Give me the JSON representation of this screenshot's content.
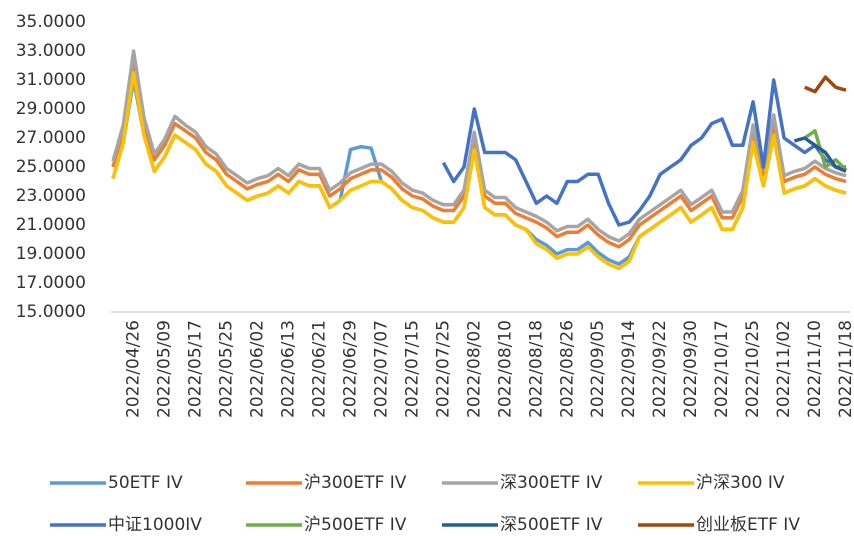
{
  "chart_data": {
    "type": "line",
    "categories": [
      null,
      null,
      "2022/04/26",
      null,
      null,
      "2022/05/09",
      null,
      null,
      "2022/05/17",
      null,
      null,
      "2022/05/25",
      null,
      null,
      "2022/06/02",
      null,
      null,
      "2022/06/13",
      null,
      null,
      "2022/06/21",
      null,
      null,
      "2022/06/29",
      null,
      null,
      "2022/07/07",
      null,
      null,
      "2022/07/15",
      null,
      null,
      "2022/07/25",
      null,
      null,
      "2022/08/02",
      null,
      null,
      "2022/08/10",
      null,
      null,
      "2022/08/18",
      null,
      null,
      "2022/08/26",
      null,
      null,
      "2022/09/05",
      null,
      null,
      "2022/09/14",
      null,
      null,
      "2022/09/22",
      null,
      null,
      "2022/09/30",
      null,
      null,
      "2022/10/17",
      null,
      null,
      "2022/10/25",
      null,
      null,
      "2022/11/02",
      null,
      null,
      "2022/11/10",
      null,
      null,
      "2022/11/18"
    ],
    "ylim": [
      15,
      35
    ],
    "yticks": [
      {
        "value": 15,
        "label": "15.0000"
      },
      {
        "value": 17,
        "label": "17.0000"
      },
      {
        "value": 19,
        "label": "19.0000"
      },
      {
        "value": 21,
        "label": "21.0000"
      },
      {
        "value": 23,
        "label": "23.0000"
      },
      {
        "value": 25,
        "label": "25.0000"
      },
      {
        "value": 27,
        "label": "27.0000"
      },
      {
        "value": 29,
        "label": "29.0000"
      },
      {
        "value": 31,
        "label": "31.0000"
      },
      {
        "value": 33,
        "label": "33.0000"
      },
      {
        "value": 35,
        "label": "35.0000"
      }
    ],
    "grid": false,
    "series": [
      {
        "name": "50ETF IV",
        "color": "#5b9bd5",
        "values": [
          24.2,
          26.7,
          31,
          27.2,
          24.7,
          25.7,
          27.2,
          26.7,
          26.2,
          25.2,
          24.7,
          23.7,
          23.2,
          22.7,
          23,
          23.2,
          23.7,
          23.2,
          24,
          23.7,
          23.7,
          22.2,
          22.7,
          26.2,
          26.4,
          26.3,
          24,
          23.5,
          22.7,
          22.2,
          22,
          21.5,
          21.2,
          21.2,
          22.2,
          26.2,
          22.2,
          21.7,
          21.7,
          21,
          20.7,
          20,
          19.6,
          19,
          19.3,
          19.3,
          19.8,
          19.1,
          18.6,
          18.3,
          18.8,
          20.2,
          20.7,
          21.2,
          21.7,
          22.2,
          21.2,
          21.7,
          22.2,
          20.7,
          20.7,
          22.2,
          26.7,
          23.7,
          27.2,
          23.2,
          23.5,
          23.7,
          24.2,
          23.7,
          23.4,
          23.2
        ]
      },
      {
        "name": "沪300ETF IV",
        "color": "#ed7d31",
        "values": [
          25,
          27.5,
          32,
          28,
          25.5,
          26.5,
          28,
          27.5,
          27,
          26,
          25.5,
          24.5,
          24,
          23.5,
          23.8,
          24,
          24.5,
          24,
          24.8,
          24.5,
          24.5,
          23,
          23.5,
          24.2,
          24.5,
          24.8,
          24.8,
          24.3,
          23.5,
          23,
          22.8,
          22.3,
          22,
          22,
          23,
          27,
          23,
          22.5,
          22.5,
          21.8,
          21.5,
          21.2,
          20.8,
          20.2,
          20.5,
          20.5,
          21,
          20.3,
          19.8,
          19.5,
          20,
          21,
          21.5,
          22,
          22.5,
          23,
          22,
          22.5,
          23,
          21.5,
          21.5,
          23,
          27.5,
          24.5,
          28,
          24,
          24.3,
          24.5,
          25,
          24.5,
          24.2,
          24
        ]
      },
      {
        "name": "深300ETF IV",
        "color": "#a5a5a5",
        "values": [
          25.4,
          27.9,
          33,
          28.4,
          25.9,
          26.9,
          28.5,
          27.9,
          27.4,
          26.4,
          25.9,
          24.9,
          24.4,
          23.9,
          24.2,
          24.4,
          24.9,
          24.4,
          25.2,
          24.9,
          24.9,
          23.4,
          23.9,
          24.6,
          24.9,
          25.2,
          25.2,
          24.7,
          23.9,
          23.4,
          23.2,
          22.7,
          22.4,
          22.4,
          23.4,
          27.4,
          23.4,
          22.9,
          22.9,
          22.2,
          21.9,
          21.6,
          21.2,
          20.6,
          20.9,
          20.9,
          21.4,
          20.7,
          20.2,
          19.9,
          20.4,
          21.4,
          21.9,
          22.4,
          22.9,
          23.4,
          22.4,
          22.9,
          23.4,
          21.9,
          21.9,
          23.4,
          27.9,
          24.9,
          28.6,
          24.4,
          24.7,
          24.9,
          25.4,
          24.9,
          24.6,
          24.4
        ]
      },
      {
        "name": "沪深300 IV",
        "color": "#ffc000",
        "values": [
          24.2,
          26.7,
          31.5,
          27.2,
          24.7,
          25.7,
          27.2,
          26.7,
          26.2,
          25.2,
          24.7,
          23.7,
          23.2,
          22.7,
          23,
          23.2,
          23.7,
          23.2,
          24,
          23.7,
          23.7,
          22.2,
          22.7,
          23.4,
          23.7,
          24,
          24,
          23.5,
          22.7,
          22.2,
          22,
          21.5,
          21.2,
          21.2,
          22.2,
          26.2,
          22.2,
          21.7,
          21.7,
          21,
          20.7,
          19.7,
          19.3,
          18.7,
          19,
          19,
          19.5,
          18.8,
          18.3,
          18,
          18.5,
          20.2,
          20.7,
          21.2,
          21.7,
          22.2,
          21.2,
          21.7,
          22.2,
          20.7,
          20.7,
          22.2,
          26.7,
          23.7,
          27.2,
          23.2,
          23.5,
          23.7,
          24.2,
          23.7,
          23.4,
          23.2
        ]
      },
      {
        "name": "中证1000IV",
        "color": "#4472c4",
        "values": [
          null,
          null,
          null,
          null,
          null,
          null,
          null,
          null,
          null,
          null,
          null,
          null,
          null,
          null,
          null,
          null,
          null,
          null,
          null,
          null,
          null,
          null,
          null,
          null,
          null,
          null,
          null,
          null,
          null,
          null,
          null,
          null,
          25.3,
          24,
          25,
          29,
          26,
          26,
          26,
          25.5,
          24,
          22.5,
          23,
          22.5,
          24,
          24,
          24.5,
          24.5,
          22.5,
          21,
          21.2,
          22,
          23,
          24.5,
          25,
          25.5,
          26.5,
          27,
          28,
          28.3,
          26.5,
          26.5,
          29.5,
          25,
          31,
          27,
          26.5,
          26,
          26.5,
          25.5,
          25,
          25
        ]
      },
      {
        "name": "沪500ETF IV",
        "color": "#70ad47",
        "values": [
          null,
          null,
          null,
          null,
          null,
          null,
          null,
          null,
          null,
          null,
          null,
          null,
          null,
          null,
          null,
          null,
          null,
          null,
          null,
          null,
          null,
          null,
          null,
          null,
          null,
          null,
          null,
          null,
          null,
          null,
          null,
          null,
          null,
          null,
          null,
          null,
          null,
          null,
          null,
          null,
          null,
          null,
          null,
          null,
          null,
          null,
          null,
          null,
          null,
          null,
          null,
          null,
          null,
          null,
          null,
          null,
          null,
          null,
          null,
          null,
          null,
          null,
          null,
          null,
          null,
          null,
          null,
          27,
          27.5,
          25,
          25.5,
          24.8
        ]
      },
      {
        "name": "深500ETF IV",
        "color": "#255e91",
        "values": [
          null,
          null,
          null,
          null,
          null,
          null,
          null,
          null,
          null,
          null,
          null,
          null,
          null,
          null,
          null,
          null,
          null,
          null,
          null,
          null,
          null,
          null,
          null,
          null,
          null,
          null,
          null,
          null,
          null,
          null,
          null,
          null,
          null,
          null,
          null,
          null,
          null,
          null,
          null,
          null,
          null,
          null,
          null,
          null,
          null,
          null,
          null,
          null,
          null,
          null,
          null,
          null,
          null,
          null,
          null,
          null,
          null,
          null,
          null,
          null,
          null,
          null,
          null,
          null,
          null,
          null,
          26.8,
          27,
          26.5,
          26,
          25,
          24.7
        ]
      },
      {
        "name": "创业板ETF IV",
        "color": "#9e480e",
        "values": [
          null,
          null,
          null,
          null,
          null,
          null,
          null,
          null,
          null,
          null,
          null,
          null,
          null,
          null,
          null,
          null,
          null,
          null,
          null,
          null,
          null,
          null,
          null,
          null,
          null,
          null,
          null,
          null,
          null,
          null,
          null,
          null,
          null,
          null,
          null,
          null,
          null,
          null,
          null,
          null,
          null,
          null,
          null,
          null,
          null,
          null,
          null,
          null,
          null,
          null,
          null,
          null,
          null,
          null,
          null,
          null,
          null,
          null,
          null,
          null,
          null,
          null,
          null,
          null,
          null,
          null,
          null,
          30.5,
          30.2,
          31.2,
          30.5,
          30.3
        ]
      }
    ]
  }
}
